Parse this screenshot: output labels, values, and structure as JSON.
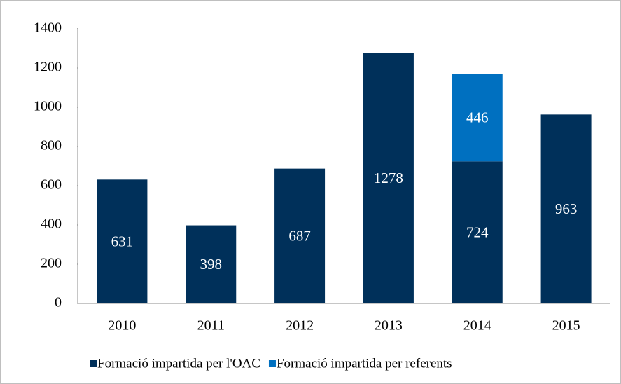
{
  "chart_data": {
    "type": "stacked_bar",
    "categories": [
      "2010",
      "2011",
      "2012",
      "2013",
      "2014",
      "2015"
    ],
    "series": [
      {
        "name": "Formació impartida per l'OAC",
        "color": "#00305a",
        "values": [
          631,
          398,
          687,
          1278,
          724,
          963
        ]
      },
      {
        "name": "Formació impartida per referents",
        "color": "#0070c0",
        "values": [
          null,
          null,
          null,
          null,
          446,
          null
        ]
      }
    ],
    "ylim": [
      0,
      1400
    ],
    "yticks": [
      0,
      200,
      400,
      600,
      800,
      1000,
      1200,
      1400
    ],
    "grid": false,
    "legend": "bottom"
  }
}
